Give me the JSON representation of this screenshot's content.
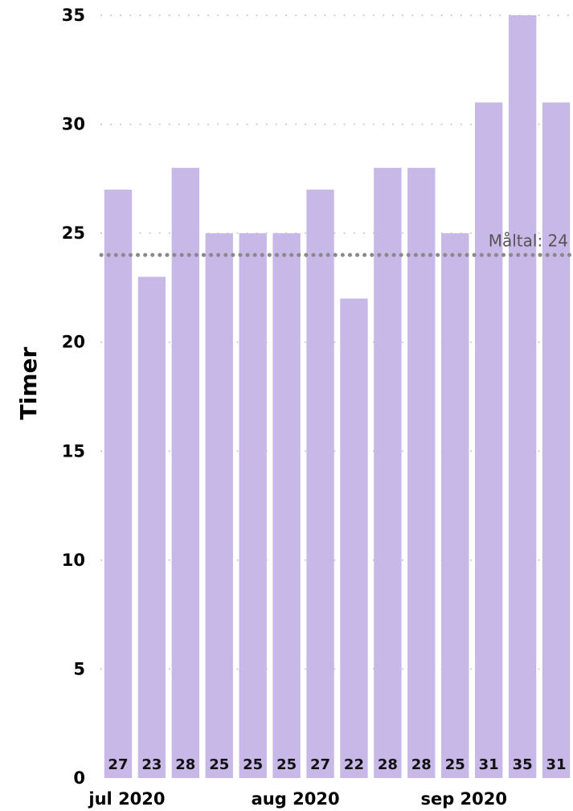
{
  "chart_data": {
    "type": "bar",
    "ylabel": "Timer",
    "ylim": [
      0,
      35
    ],
    "yticks": [
      "0",
      "5",
      "10",
      "15",
      "20",
      "25",
      "30",
      "35"
    ],
    "x_period_labels": [
      {
        "label": "jul 2020",
        "at_bar": 0
      },
      {
        "label": "aug 2020",
        "at_bar": 5
      },
      {
        "label": "sep 2020",
        "at_bar": 10
      }
    ],
    "values": [
      27,
      23,
      28,
      25,
      25,
      25,
      27,
      22,
      28,
      28,
      25,
      31,
      35,
      31
    ],
    "data_labels": [
      "27",
      "23",
      "28",
      "25",
      "25",
      "25",
      "27",
      "22",
      "28",
      "28",
      "25",
      "31",
      "35",
      "31"
    ],
    "reference_line": {
      "value": 24,
      "label": "Måltal: 24"
    },
    "grid": true,
    "colors": {
      "bar": "#c8b8e8",
      "reference": "#8a8a8a",
      "grid": "#c8c8c8"
    }
  }
}
